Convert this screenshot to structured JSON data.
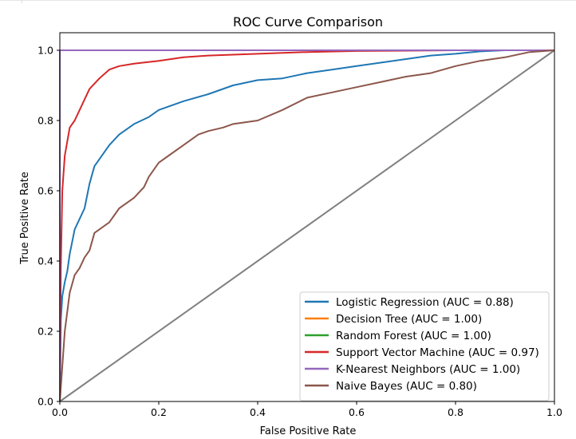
{
  "chart_data": {
    "type": "line",
    "title": "ROC Curve Comparison",
    "xlabel": "False Positive Rate",
    "ylabel": "True Positive Rate",
    "xlim": [
      0.0,
      1.0
    ],
    "ylim": [
      0.0,
      1.05
    ],
    "xticks": [
      0.0,
      0.2,
      0.4,
      0.6,
      0.8,
      1.0
    ],
    "yticks": [
      0.0,
      0.2,
      0.4,
      0.6,
      0.8,
      1.0
    ],
    "xtick_labels": [
      "0.0",
      "0.2",
      "0.4",
      "0.6",
      "0.8",
      "1.0"
    ],
    "ytick_labels": [
      "0.0",
      "0.2",
      "0.4",
      "0.6",
      "0.8",
      "1.0"
    ],
    "grid": false,
    "legend_position": "lower-right",
    "series": [
      {
        "name": "Logistic Regression (AUC = 0.88)",
        "color": "#1f77b4",
        "x": [
          0,
          0.002,
          0.005,
          0.01,
          0.015,
          0.02,
          0.03,
          0.04,
          0.05,
          0.06,
          0.07,
          0.08,
          0.1,
          0.12,
          0.15,
          0.18,
          0.2,
          0.25,
          0.3,
          0.35,
          0.4,
          0.45,
          0.5,
          0.55,
          0.6,
          0.65,
          0.7,
          0.75,
          0.8,
          0.85,
          0.9,
          0.95,
          1.0
        ],
        "y": [
          0,
          0.23,
          0.3,
          0.34,
          0.37,
          0.42,
          0.49,
          0.52,
          0.55,
          0.62,
          0.67,
          0.69,
          0.73,
          0.76,
          0.79,
          0.81,
          0.83,
          0.855,
          0.875,
          0.9,
          0.915,
          0.92,
          0.935,
          0.945,
          0.955,
          0.965,
          0.975,
          0.985,
          0.99,
          0.997,
          1.0,
          1.0,
          1.0
        ]
      },
      {
        "name": "Decision Tree (AUC = 1.00)",
        "color": "#ff7f0e",
        "x": [
          0,
          0,
          1.0
        ],
        "y": [
          0,
          1.0,
          1.0
        ]
      },
      {
        "name": "Random Forest (AUC = 1.00)",
        "color": "#2ca02c",
        "x": [
          0,
          0,
          1.0
        ],
        "y": [
          0,
          1.0,
          1.0
        ]
      },
      {
        "name": "Support Vector Machine (AUC = 0.97)",
        "color": "#d62728",
        "x": [
          0,
          0.002,
          0.005,
          0.01,
          0.015,
          0.02,
          0.03,
          0.04,
          0.05,
          0.06,
          0.08,
          0.1,
          0.12,
          0.15,
          0.2,
          0.25,
          0.3,
          0.4,
          0.5,
          0.6,
          0.7,
          0.8,
          0.9,
          1.0
        ],
        "y": [
          0,
          0.38,
          0.6,
          0.7,
          0.74,
          0.78,
          0.8,
          0.83,
          0.86,
          0.89,
          0.92,
          0.945,
          0.955,
          0.962,
          0.97,
          0.98,
          0.985,
          0.99,
          0.995,
          0.998,
          0.999,
          1.0,
          1.0,
          1.0
        ]
      },
      {
        "name": "K-Nearest Neighbors (AUC = 1.00)",
        "color": "#9467bd",
        "x": [
          0,
          0,
          1.0
        ],
        "y": [
          0,
          1.0,
          1.0
        ]
      },
      {
        "name": "Naive Bayes (AUC = 0.80)",
        "color": "#8c564b",
        "x": [
          0,
          0.01,
          0.02,
          0.03,
          0.04,
          0.05,
          0.06,
          0.07,
          0.08,
          0.1,
          0.12,
          0.15,
          0.17,
          0.18,
          0.2,
          0.22,
          0.25,
          0.28,
          0.3,
          0.33,
          0.35,
          0.4,
          0.45,
          0.5,
          0.55,
          0.6,
          0.65,
          0.7,
          0.75,
          0.8,
          0.85,
          0.9,
          0.95,
          1.0
        ],
        "y": [
          0,
          0.2,
          0.31,
          0.36,
          0.38,
          0.41,
          0.43,
          0.48,
          0.49,
          0.51,
          0.55,
          0.58,
          0.61,
          0.64,
          0.68,
          0.7,
          0.73,
          0.76,
          0.77,
          0.78,
          0.79,
          0.8,
          0.83,
          0.865,
          0.88,
          0.895,
          0.91,
          0.925,
          0.935,
          0.955,
          0.97,
          0.98,
          0.995,
          1.0
        ]
      }
    ],
    "reference_line": {
      "color": "#808080",
      "x": [
        0,
        1.0
      ],
      "y": [
        0,
        1.0
      ]
    }
  }
}
